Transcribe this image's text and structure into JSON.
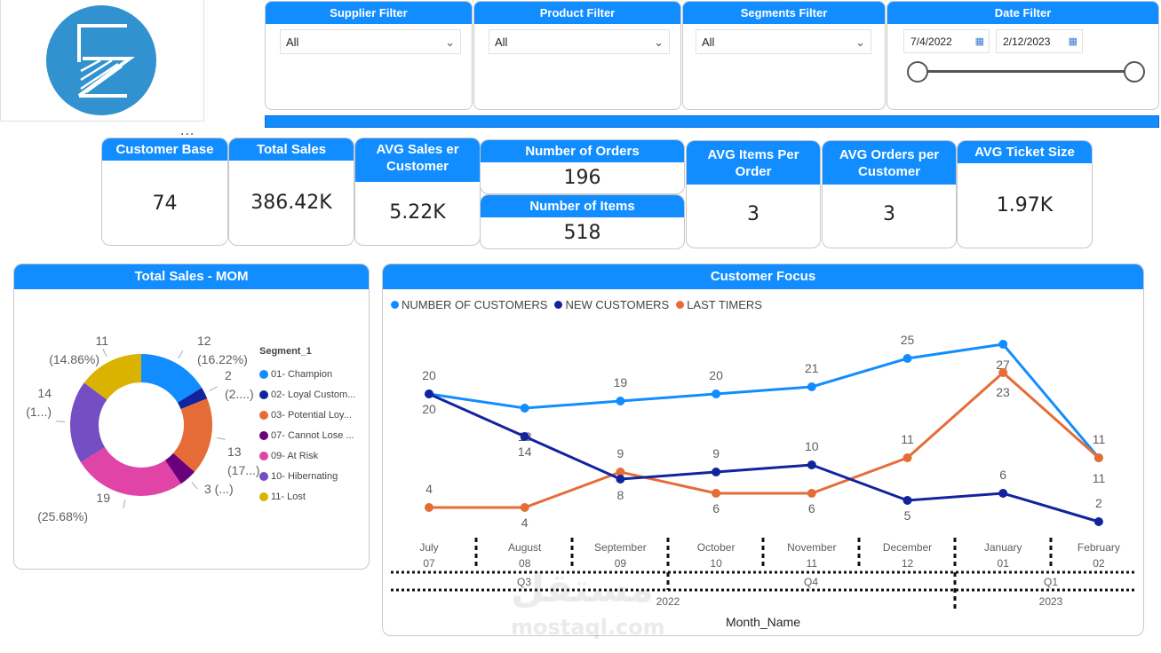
{
  "logo": {
    "color": "#3192cf"
  },
  "filters": {
    "supplier": {
      "title": "Supplier Filter",
      "value": "All"
    },
    "product": {
      "title": "Product Filter",
      "value": "All"
    },
    "segments": {
      "title": "Segments Filter",
      "value": "All"
    },
    "date": {
      "title": "Date Filter",
      "start": "7/4/2022",
      "end": "2/12/2023"
    }
  },
  "kpis": {
    "customer_base": {
      "label": "Customer Base",
      "value": "74"
    },
    "total_sales": {
      "label": "Total Sales",
      "value": "386.42K"
    },
    "avg_sales": {
      "label": "AVG Sales er Customer",
      "value": "5.22K"
    },
    "orders": {
      "label": "Number of Orders",
      "value": "196"
    },
    "items": {
      "label": "Number of Items",
      "value": "518"
    },
    "items_per_order": {
      "label": "AVG Items Per Order",
      "value": "3"
    },
    "orders_per_customer": {
      "label": "AVG Orders per Customer",
      "value": "3"
    },
    "ticket": {
      "label": "AVG Ticket Size",
      "value": "1.97K"
    }
  },
  "more_options": "...",
  "chart_data": [
    {
      "type": "pie",
      "title": "Total Sales - MOM",
      "legend_title": "Segment_1",
      "legend_position": "right",
      "categories": [
        "01- Champion",
        "02- Loyal Custom...",
        "03- Potential Loy...",
        "07- Cannot Lose ...",
        "09- At Risk",
        "10- Hibernating",
        "11- Lost"
      ],
      "values": [
        12,
        2,
        13,
        3,
        19,
        14,
        11
      ],
      "colors": [
        "#118dff",
        "#12239e",
        "#e66c37",
        "#6b007b",
        "#e044a7",
        "#744ec2",
        "#d9b300"
      ],
      "data_labels": [
        [
          "12",
          "(16.22%)"
        ],
        [
          "2",
          "(2....)"
        ],
        [
          "13",
          "(17...)"
        ],
        [
          "3 (...)",
          ""
        ],
        [
          "19",
          "(25.68%)"
        ],
        [
          "14",
          "(1...)"
        ],
        [
          "11",
          "(14.86%)"
        ]
      ]
    },
    {
      "type": "line",
      "title": "Customer Focus",
      "xlabel": "Month_Name",
      "legend_position": "top-left",
      "categories": [
        "July",
        "August",
        "September",
        "October",
        "November",
        "December",
        "January",
        "February"
      ],
      "month_numbers": [
        "07",
        "08",
        "09",
        "10",
        "11",
        "12",
        "01",
        "02"
      ],
      "quarters": [
        "Q3",
        "Q4",
        "Q1"
      ],
      "years": [
        "2022",
        "2023"
      ],
      "series": [
        {
          "name": "NUMBER OF CUSTOMERS",
          "color": "#118dff",
          "values": [
            20,
            18,
            19,
            20,
            21,
            25,
            27,
            11
          ]
        },
        {
          "name": "NEW CUSTOMERS",
          "color": "#12239e",
          "values": [
            20,
            14,
            8,
            9,
            10,
            5,
            6,
            2
          ]
        },
        {
          "name": "LAST TIMERS",
          "color": "#e66c37",
          "values": [
            4,
            4,
            9,
            6,
            6,
            11,
            23,
            11
          ]
        }
      ]
    }
  ],
  "watermark": {
    "arabic": "مستقل",
    "latin": "mostaql.com"
  }
}
